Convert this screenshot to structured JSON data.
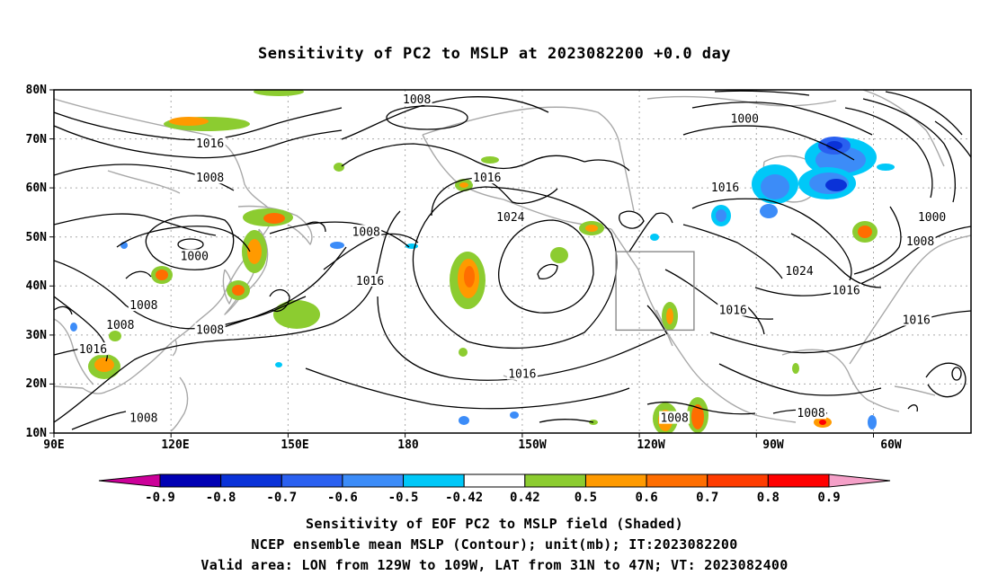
{
  "title": "Sensitivity of PC2 to MSLP at 2023082200 +0.0 day",
  "lat_labels": [
    "80N",
    "70N",
    "60N",
    "50N",
    "40N",
    "30N",
    "20N",
    "10N"
  ],
  "lon_labels": [
    "90E",
    "120E",
    "150E",
    "180",
    "150W",
    "120W",
    "90W",
    "60W"
  ],
  "map_extent": {
    "lon_min": 90,
    "lon_max": 325,
    "lat_min": 10,
    "lat_max": 80
  },
  "valid_box": {
    "lon_min": 231,
    "lon_max": 251,
    "lat_min": 31,
    "lat_max": 47
  },
  "contour_labels": [
    {
      "text": "1008",
      "lon": 183,
      "lat": 78
    },
    {
      "text": "1000",
      "lon": 267,
      "lat": 74
    },
    {
      "text": "1016",
      "lon": 130,
      "lat": 69
    },
    {
      "text": "1008",
      "lon": 130,
      "lat": 62
    },
    {
      "text": "1016",
      "lon": 201,
      "lat": 62
    },
    {
      "text": "1016",
      "lon": 262,
      "lat": 60
    },
    {
      "text": "1024",
      "lon": 207,
      "lat": 54
    },
    {
      "text": "1000",
      "lon": 315,
      "lat": 54
    },
    {
      "text": "1008",
      "lon": 170,
      "lat": 51
    },
    {
      "text": "1008",
      "lon": 312,
      "lat": 49
    },
    {
      "text": "1000",
      "lon": 126,
      "lat": 46
    },
    {
      "text": "1024",
      "lon": 281,
      "lat": 43
    },
    {
      "text": "1016",
      "lon": 171,
      "lat": 41
    },
    {
      "text": "1016",
      "lon": 293,
      "lat": 39
    },
    {
      "text": "1008",
      "lon": 113,
      "lat": 36
    },
    {
      "text": "1016",
      "lon": 264,
      "lat": 35
    },
    {
      "text": "1008",
      "lon": 107,
      "lat": 32
    },
    {
      "text": "1016",
      "lon": 311,
      "lat": 33
    },
    {
      "text": "1008",
      "lon": 130,
      "lat": 31
    },
    {
      "text": "1016",
      "lon": 100,
      "lat": 27
    },
    {
      "text": "1016",
      "lon": 210,
      "lat": 22
    },
    {
      "text": "1008",
      "lon": 113,
      "lat": 13
    },
    {
      "text": "1008",
      "lon": 249,
      "lat": 13
    },
    {
      "text": "1008",
      "lon": 284,
      "lat": 14
    }
  ],
  "colorbar": {
    "labels": [
      "-0.9",
      "-0.8",
      "-0.7",
      "-0.6",
      "-0.5",
      "-0.42",
      "0.42",
      "0.5",
      "0.6",
      "0.7",
      "0.8",
      "0.9"
    ],
    "colors": [
      "#cc0099",
      "#0000b4",
      "#0a32d8",
      "#2a60f0",
      "#3c8cf8",
      "#00c8f8",
      "#ffffff",
      "#8ccc30",
      "#ff9a00",
      "#ff6e00",
      "#ff3c00",
      "#ff0000",
      "#f5a0c8"
    ]
  },
  "caption": {
    "line1": "Sensitivity of EOF PC2 to MSLP field (Shaded)",
    "line2": "NCEP ensemble mean MSLP (Contour); unit(mb); IT:2023082200",
    "line3": "Valid area: LON from 129W to 109W, LAT from 31N to 47N; VT: 2023082400"
  }
}
